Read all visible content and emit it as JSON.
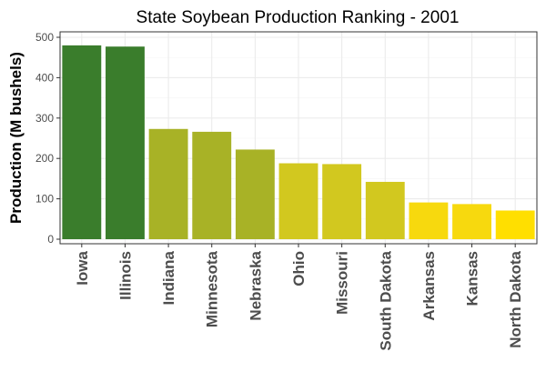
{
  "chart_data": {
    "type": "bar",
    "title": "State Soybean Production Ranking - 2001",
    "xlabel": "",
    "ylabel": "Production (M bushels)",
    "categories": [
      "Iowa",
      "Illinois",
      "Indiana",
      "Minnesota",
      "Nebraska",
      "Ohio",
      "Missouri",
      "South Dakota",
      "Arkansas",
      "Kansas",
      "North Dakota"
    ],
    "values": [
      480,
      477,
      273,
      266,
      222,
      188,
      186,
      142,
      91,
      87,
      71
    ],
    "bar_colors": [
      "#3a7d2c",
      "#3a7d2c",
      "#a8b226",
      "#a8b226",
      "#a8b226",
      "#d2c81f",
      "#d2c81f",
      "#d2c81f",
      "#f7d90e",
      "#f7d90e",
      "#ffdf00"
    ],
    "ylim": [
      0,
      500
    ],
    "yticks": [
      0,
      100,
      200,
      300,
      400,
      500
    ],
    "grid": true,
    "legend": "none"
  }
}
